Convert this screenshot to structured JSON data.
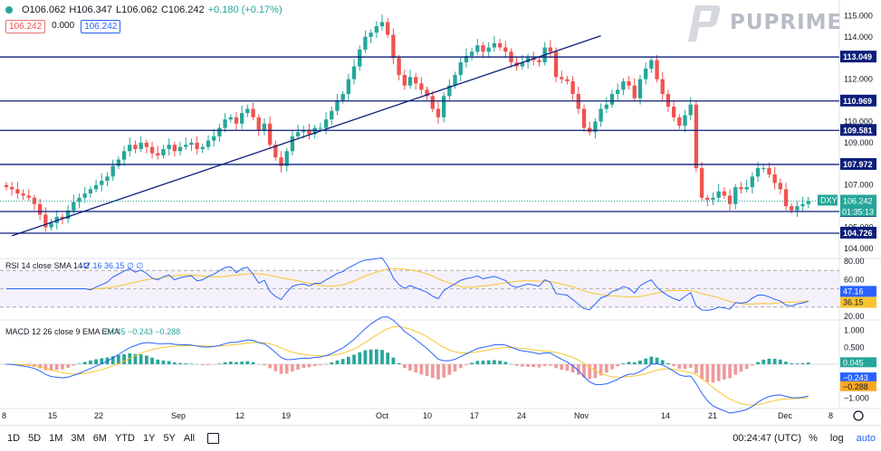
{
  "header": {
    "open": "O106.062",
    "high": "H106.347",
    "low": "L106.062",
    "close": "C106.242",
    "change": "+0.180 (+0.17%)",
    "tags": [
      "106.242",
      "0.000",
      "106.242"
    ]
  },
  "logo": {
    "text": "PUPRIME"
  },
  "chart_data": [
    {
      "type": "candlestick",
      "symbol": "DXY",
      "price_axis_ticks": [
        "115.000",
        "114.000",
        "113.000",
        "112.000",
        "111.000",
        "110.000",
        "109.000",
        "108.000",
        "107.000",
        "106.000",
        "105.000",
        "104.000"
      ],
      "ylim": [
        103.7,
        115.4
      ],
      "x_ticks": [
        "8",
        "15",
        "22",
        "Sep",
        "12",
        "19",
        "Oct",
        "10",
        "17",
        "24",
        "Nov",
        "14",
        "21",
        "Dec",
        "8"
      ],
      "horizontal_levels": [
        113.049,
        110.969,
        109.581,
        107.972,
        105.749,
        104.726
      ],
      "trendline": {
        "from": [
          1,
          104.6
        ],
        "to": [
          106,
          114.05
        ]
      },
      "last_price_label": "106.242",
      "countdown": "01:35:13",
      "closes": [
        106.9,
        106.8,
        106.6,
        106.5,
        106.4,
        106.1,
        105.6,
        105.0,
        105.2,
        105.5,
        105.4,
        105.8,
        106.2,
        106.4,
        106.6,
        106.8,
        107.0,
        107.2,
        107.4,
        107.9,
        108.2,
        108.6,
        108.9,
        108.7,
        109.0,
        108.8,
        108.5,
        108.4,
        108.7,
        108.9,
        108.6,
        108.8,
        108.9,
        109.0,
        108.7,
        108.8,
        109.1,
        109.3,
        109.7,
        110.1,
        110.2,
        109.9,
        110.4,
        110.6,
        110.2,
        109.6,
        109.9,
        108.9,
        108.3,
        107.9,
        108.6,
        109.3,
        109.5,
        109.6,
        109.4,
        109.7,
        109.7,
        110.1,
        110.5,
        111.0,
        111.3,
        112.0,
        112.6,
        113.4,
        114.0,
        114.2,
        114.5,
        114.7,
        114.1,
        113.0,
        112.2,
        111.7,
        112.1,
        111.8,
        111.5,
        111.2,
        110.6,
        110.2,
        111.2,
        111.7,
        112.2,
        112.8,
        113.1,
        113.3,
        113.6,
        113.3,
        113.5,
        113.7,
        113.5,
        113.3,
        112.8,
        112.6,
        112.8,
        113.0,
        112.9,
        112.8,
        113.5,
        113.3,
        112.1,
        112.0,
        111.9,
        111.3,
        110.6,
        109.7,
        109.5,
        110.0,
        110.6,
        110.8,
        111.3,
        111.5,
        111.9,
        111.7,
        111.1,
        112.0,
        112.5,
        112.9,
        112.0,
        111.3,
        110.7,
        110.2,
        109.8,
        110.3,
        110.8,
        107.8,
        106.4,
        106.3,
        106.4,
        106.7,
        106.5,
        106.1,
        106.9,
        106.8,
        106.9,
        107.4,
        107.8,
        107.8,
        107.5,
        107.1,
        106.8,
        106.0,
        105.8,
        106.0,
        106.1,
        106.24
      ],
      "last_index": 149
    },
    {
      "type": "line",
      "title": "RSI 14 close SMA 14 2",
      "legend_values": [
        "47.16",
        "36.15",
        "∅",
        "∅"
      ],
      "axis_ticks": [
        "80.00",
        "60.00",
        "40.00",
        "20.00"
      ],
      "ylim": [
        20,
        80
      ],
      "band": [
        30,
        70
      ],
      "labels": {
        "rsi": "47.16",
        "sma": "36.15"
      },
      "series": [
        {
          "name": "RSI",
          "color": "#2962ff"
        },
        {
          "name": "SMA",
          "color": "#f7c531"
        }
      ]
    },
    {
      "type": "line",
      "title": "MACD 12 26 close 9 EMA EMA",
      "legend_values": [
        "0.045",
        "−0.243",
        "−0.288"
      ],
      "axis_ticks": [
        "1.000",
        "0.500",
        "0.000",
        "−0.500",
        "−1.000"
      ],
      "ylim": [
        -1.2,
        1.2
      ],
      "labels": {
        "hist": "0.045",
        "macd": "−0.243",
        "signal": "−0.288"
      },
      "series": [
        {
          "name": "MACD",
          "color": "#2962ff"
        },
        {
          "name": "Signal",
          "color": "#f7c531"
        },
        {
          "name": "Histogram",
          "color": "#26a69a"
        }
      ]
    }
  ],
  "bottombar": {
    "timeframes": [
      "1D",
      "5D",
      "1M",
      "3M",
      "6M",
      "YTD",
      "1Y",
      "5Y",
      "All"
    ],
    "clock": "00:24:47 (UTC)",
    "percent": "%",
    "log": "log",
    "auto": "auto"
  },
  "colors": {
    "up": "#26a69a",
    "down": "#ef5350",
    "level": "#0d1e7a",
    "rsi": "#2962ff",
    "rsi_sma": "#f7c531",
    "axis_text": "#131722"
  }
}
